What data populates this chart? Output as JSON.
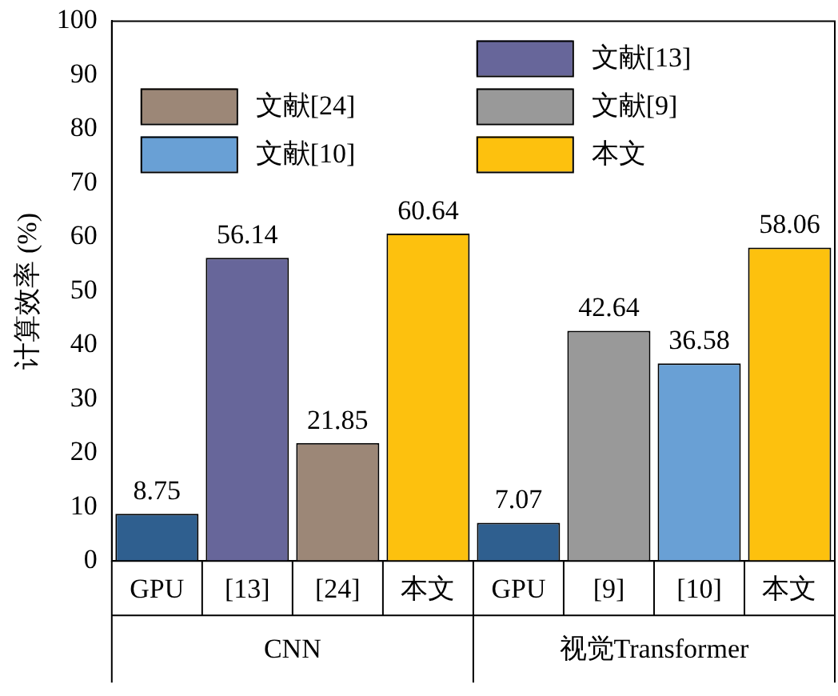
{
  "chart_data": {
    "type": "bar",
    "ylabel": "计算效率 (%)",
    "categories": [
      "GPU",
      "[13]",
      "[24]",
      "本文",
      "GPU",
      "[9]",
      "[10]",
      "本文"
    ],
    "series": [
      {
        "color": "#2f5f8f",
        "values": [
          8.75,
          null,
          null,
          null,
          7.07,
          null,
          null,
          null
        ]
      },
      {
        "name": "文献[13]",
        "color": "#67669a",
        "values": [
          null,
          56.14,
          null,
          null,
          null,
          null,
          null,
          null
        ]
      },
      {
        "name": "文献[24]",
        "color": "#9c8777",
        "values": [
          null,
          null,
          21.85,
          null,
          null,
          null,
          null,
          null
        ]
      },
      {
        "name": "文献[9]",
        "color": "#999999",
        "values": [
          null,
          null,
          null,
          null,
          null,
          42.64,
          null,
          null
        ]
      },
      {
        "name": "文献[10]",
        "color": "#69a0d5",
        "values": [
          null,
          null,
          null,
          null,
          null,
          null,
          36.58,
          null
        ]
      },
      {
        "name": "本文",
        "color": "#fdc10e",
        "values": [
          null,
          null,
          null,
          60.64,
          null,
          null,
          null,
          58.06
        ]
      }
    ],
    "ylim": [
      0,
      100
    ],
    "yticks": [
      0,
      10,
      20,
      30,
      40,
      50,
      60,
      70,
      80,
      90,
      100
    ],
    "grid": false,
    "legend": "top",
    "data_labels": true,
    "annotations": [
      "CNN",
      "视觉Transformer"
    ]
  }
}
